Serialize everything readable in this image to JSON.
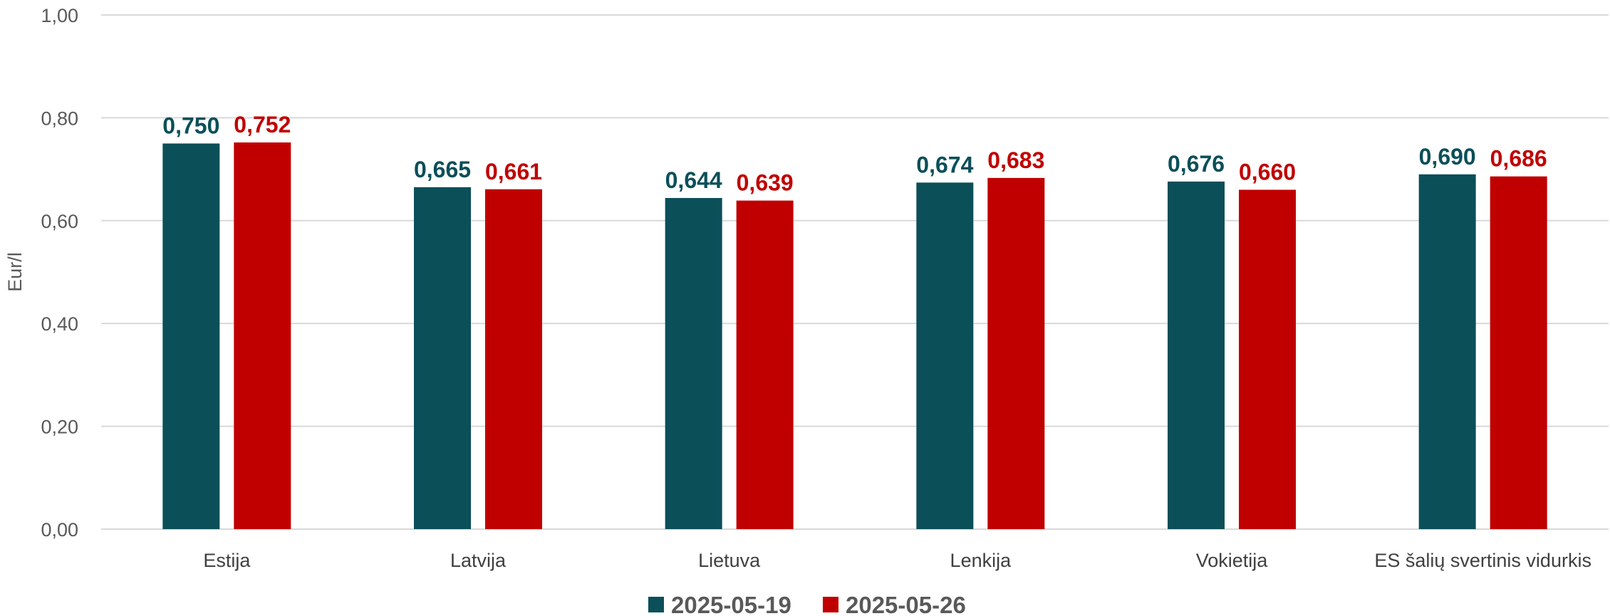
{
  "chart_data": {
    "type": "bar",
    "categories": [
      "Estija",
      "Latvija",
      "Lietuva",
      "Lenkija",
      "Vokietija",
      "ES šalių svertinis vidurkis"
    ],
    "series": [
      {
        "name": "2025-05-19",
        "color": "#0b4f59",
        "values": [
          0.75,
          0.665,
          0.644,
          0.674,
          0.676,
          0.69
        ],
        "labels": [
          "0,750",
          "0,665",
          "0,644",
          "0,674",
          "0,676",
          "0,690"
        ]
      },
      {
        "name": "2025-05-26",
        "color": "#c00000",
        "values": [
          0.752,
          0.661,
          0.639,
          0.683,
          0.66,
          0.686
        ],
        "labels": [
          "0,752",
          "0,661",
          "0,639",
          "0,683",
          "0,660",
          "0,686"
        ]
      }
    ],
    "ylabel": "Eur/l",
    "xlabel": "",
    "ylim": [
      0,
      1.0
    ],
    "yticks": [
      0,
      0.2,
      0.4,
      0.6,
      0.8,
      1.0
    ],
    "ytick_labels": [
      "0,00",
      "0,20",
      "0,40",
      "0,60",
      "0,80",
      "1,00"
    ],
    "grid": true,
    "legend_position": "bottom"
  }
}
